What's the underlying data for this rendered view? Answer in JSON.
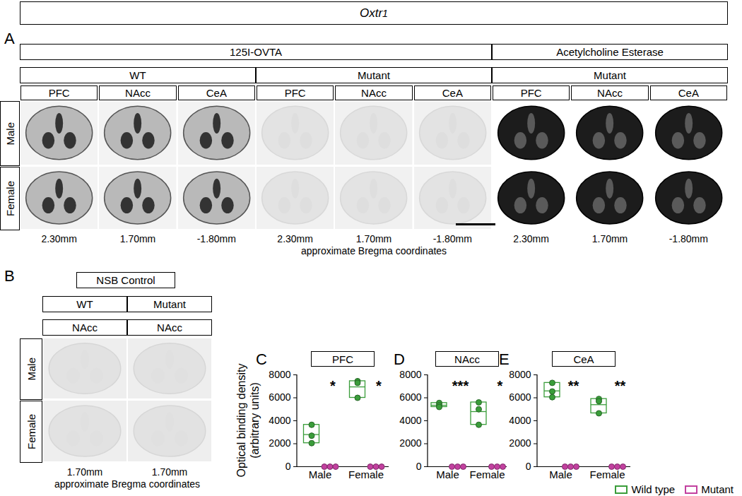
{
  "figure": {
    "header": {
      "gene": "Oxtr",
      "allele": "1"
    },
    "panel_A": {
      "letter": "A",
      "methods": [
        {
          "label": "125I-OVTA",
          "genotypes": [
            "WT",
            "Mutant"
          ]
        },
        {
          "label": "Acetylcholine Esterase",
          "genotypes": [
            "Mutant"
          ]
        }
      ],
      "regions": [
        "PFC",
        "NAcc",
        "CeA"
      ],
      "sexes": [
        "Male",
        "Female"
      ],
      "bregma": [
        "2.30mm",
        "1.70mm",
        "-1.80mm"
      ],
      "bregma_caption": "approximate Bregma coordinates"
    },
    "panel_B": {
      "letter": "B",
      "title": "NSB Control",
      "genotypes": [
        "WT",
        "Mutant"
      ],
      "region": "NAcc",
      "sexes": [
        "Male",
        "Female"
      ],
      "bregma": "1.70mm",
      "bregma_caption": "approximate Bregma coordinates"
    }
  },
  "chart_data": [
    {
      "type": "box_dot",
      "panel": "C",
      "title": "PFC",
      "y_label": "Optical binding density\n(arbitrary units)",
      "categories": [
        "Male",
        "Female"
      ],
      "ylim": [
        0,
        8000
      ],
      "yticks": [
        0,
        2000,
        4000,
        6000,
        8000
      ],
      "significance": [
        "*",
        "*"
      ],
      "series": [
        {
          "name": "Wild type",
          "color": "#3a9d3a",
          "values": [
            [
              3650,
              2700,
              2050
            ],
            [
              7450,
              7300,
              6000
            ]
          ],
          "box": [
            {
              "low": 2050,
              "high": 3650,
              "center": 2800
            },
            {
              "low": 6000,
              "high": 7450,
              "center": 6950
            }
          ]
        },
        {
          "name": "Mutant",
          "color": "#c2409f",
          "values": [
            [
              0,
              0,
              0
            ],
            [
              0,
              0,
              0
            ]
          ],
          "box": [
            {
              "low": 0,
              "high": 0,
              "center": 0
            },
            {
              "low": 0,
              "high": 0,
              "center": 0
            }
          ]
        }
      ]
    },
    {
      "type": "box_dot",
      "panel": "D",
      "title": "NAcc",
      "categories": [
        "Male",
        "Female"
      ],
      "ylim": [
        0,
        8000
      ],
      "yticks": [
        0,
        2000,
        4000,
        6000,
        8000
      ],
      "significance": [
        "***",
        "*"
      ],
      "series": [
        {
          "name": "Wild type",
          "color": "#3a9d3a",
          "values": [
            [
              5550,
              5350,
              5200
            ],
            [
              5600,
              5000,
              3650
            ]
          ],
          "box": [
            {
              "low": 5200,
              "high": 5550,
              "center": 5350
            },
            {
              "low": 3650,
              "high": 5600,
              "center": 4800
            }
          ]
        },
        {
          "name": "Mutant",
          "color": "#c2409f",
          "values": [
            [
              0,
              0,
              0
            ],
            [
              0,
              0,
              0
            ]
          ],
          "box": [
            {
              "low": 0,
              "high": 0,
              "center": 0
            },
            {
              "low": 0,
              "high": 0,
              "center": 0
            }
          ]
        }
      ]
    },
    {
      "type": "box_dot",
      "panel": "E",
      "title": "CeA",
      "categories": [
        "Male",
        "Female"
      ],
      "ylim": [
        0,
        8000
      ],
      "yticks": [
        0,
        2000,
        4000,
        6000,
        8000
      ],
      "significance": [
        "**",
        "**"
      ],
      "legend": "bottom-right",
      "series": [
        {
          "name": "Wild type",
          "color": "#3a9d3a",
          "values": [
            [
              7300,
              6550,
              6050
            ],
            [
              5900,
              5700,
              4650
            ]
          ],
          "box": [
            {
              "low": 6050,
              "high": 7300,
              "center": 6600
            },
            {
              "low": 4650,
              "high": 5900,
              "center": 5400
            }
          ]
        },
        {
          "name": "Mutant",
          "color": "#c2409f",
          "values": [
            [
              0,
              0,
              0
            ],
            [
              0,
              0,
              0
            ]
          ],
          "box": [
            {
              "low": 0,
              "high": 0,
              "center": 0
            },
            {
              "low": 0,
              "high": 0,
              "center": 0
            }
          ]
        }
      ]
    }
  ]
}
